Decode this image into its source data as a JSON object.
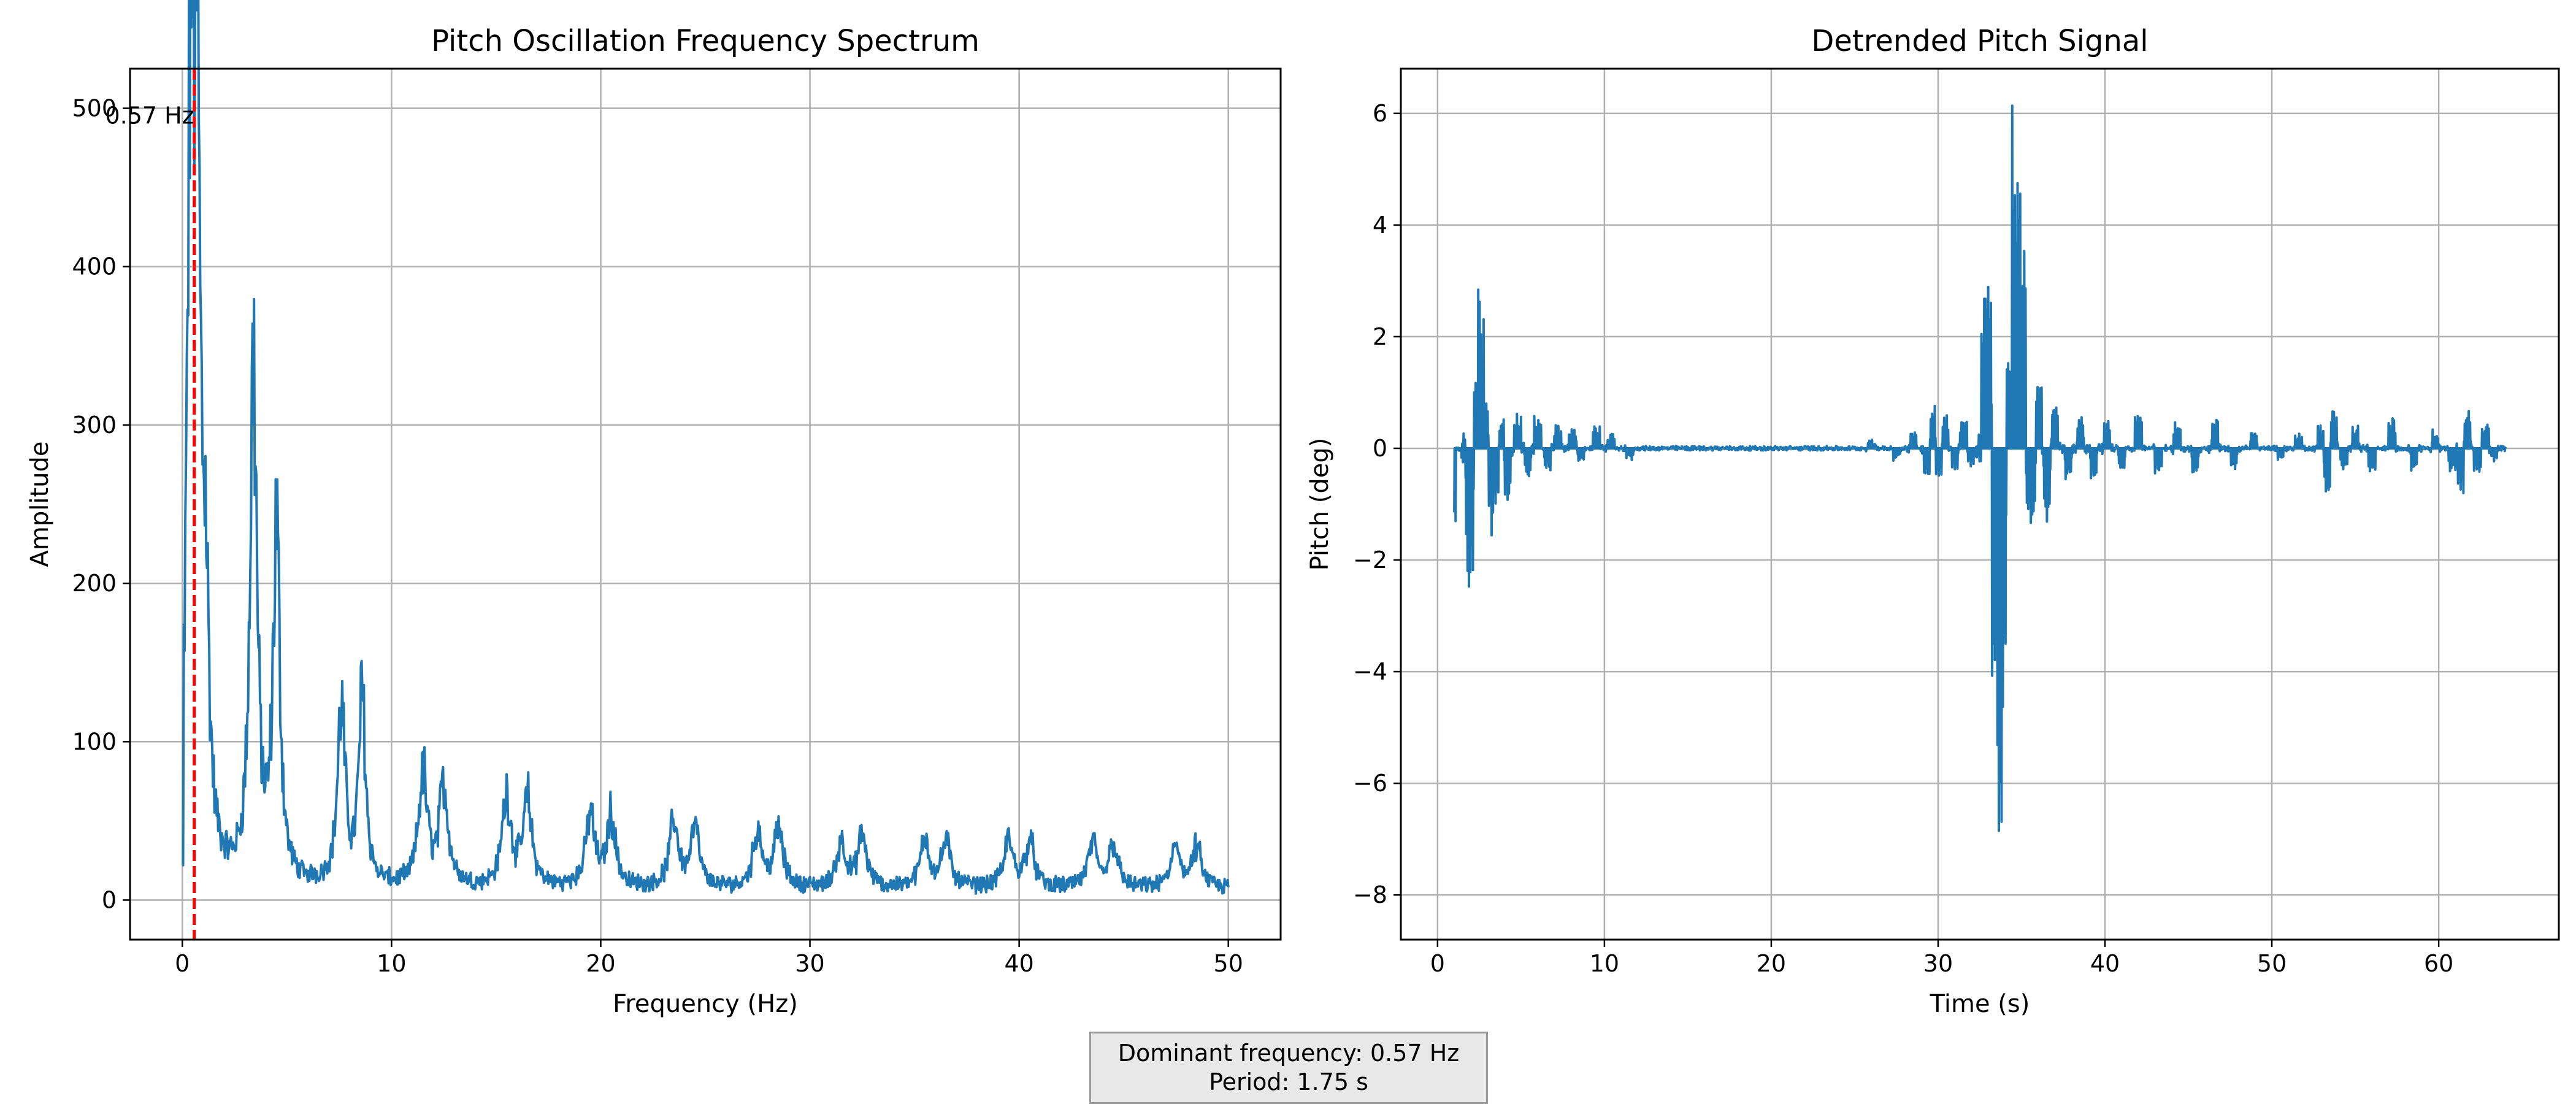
{
  "chart_data": [
    {
      "type": "line",
      "title": "Pitch Oscillation Frequency Spectrum",
      "xlabel": "Frequency (Hz)",
      "ylabel": "Amplitude",
      "xlim": [
        -2.5,
        52.5
      ],
      "ylim": [
        -25,
        525
      ],
      "xticks": [
        0,
        10,
        20,
        30,
        40,
        50
      ],
      "yticks": [
        0,
        100,
        200,
        300,
        400,
        500
      ],
      "grid": true,
      "series": [
        {
          "color": "#1f77b4",
          "peaks": [
            {
              "freq": 0.4,
              "amp": 500,
              "width": 0.18
            },
            {
              "freq": 0.7,
              "amp": 430,
              "width": 0.18
            },
            {
              "freq": 1.1,
              "amp": 160,
              "width": 0.2
            },
            {
              "freq": 3.4,
              "amp": 335,
              "width": 0.2
            },
            {
              "freq": 4.5,
              "amp": 225,
              "width": 0.2
            },
            {
              "freq": 7.6,
              "amp": 113,
              "width": 0.22
            },
            {
              "freq": 8.6,
              "amp": 120,
              "width": 0.2
            },
            {
              "freq": 11.5,
              "amp": 72,
              "width": 0.25
            },
            {
              "freq": 12.5,
              "amp": 65,
              "width": 0.25
            },
            {
              "freq": 15.5,
              "amp": 60,
              "width": 0.25
            },
            {
              "freq": 16.5,
              "amp": 55,
              "width": 0.25
            },
            {
              "freq": 19.5,
              "amp": 47,
              "width": 0.25
            },
            {
              "freq": 20.5,
              "amp": 46,
              "width": 0.25
            },
            {
              "freq": 23.5,
              "amp": 43,
              "width": 0.25
            },
            {
              "freq": 24.5,
              "amp": 38,
              "width": 0.25
            },
            {
              "freq": 27.5,
              "amp": 37,
              "width": 0.25
            },
            {
              "freq": 28.5,
              "amp": 37,
              "width": 0.25
            },
            {
              "freq": 31.5,
              "amp": 30,
              "width": 0.25
            },
            {
              "freq": 32.5,
              "amp": 33,
              "width": 0.25
            },
            {
              "freq": 35.5,
              "amp": 32,
              "width": 0.25
            },
            {
              "freq": 36.5,
              "amp": 29,
              "width": 0.25
            },
            {
              "freq": 39.5,
              "amp": 31,
              "width": 0.25
            },
            {
              "freq": 40.5,
              "amp": 31,
              "width": 0.25
            },
            {
              "freq": 43.5,
              "amp": 28,
              "width": 0.25
            },
            {
              "freq": 44.5,
              "amp": 29,
              "width": 0.25
            },
            {
              "freq": 47.5,
              "amp": 28,
              "width": 0.25
            },
            {
              "freq": 48.5,
              "amp": 26,
              "width": 0.25
            }
          ],
          "x_range": [
            0,
            50
          ]
        }
      ],
      "annotations": [
        {
          "type": "vline",
          "x": 0.57,
          "color": "#ff0000",
          "style": "dashed"
        },
        {
          "type": "text",
          "text": "0.57 Hz",
          "x": 0.57,
          "y": 500
        }
      ]
    },
    {
      "type": "line",
      "title": "Detrended Pitch Signal",
      "xlabel": "Time (s)",
      "ylabel": "Pitch (deg)",
      "xlim": [
        -2.2,
        67.2
      ],
      "ylim": [
        -8.8,
        6.8
      ],
      "xticks": [
        0,
        10,
        20,
        30,
        40,
        50,
        60
      ],
      "yticks": [
        -8,
        -6,
        -4,
        -2,
        0,
        2,
        4,
        6
      ],
      "ytick_labels": [
        "−8",
        "−6",
        "−4",
        "−2",
        "0",
        "2",
        "4",
        "6"
      ],
      "grid": true,
      "series": [
        {
          "color": "#1f77b4",
          "x_range": [
            1,
            64
          ],
          "events": [
            {
              "t": 1.0,
              "v": -1.35
            },
            {
              "t": 1.2,
              "v": 0.0
            },
            {
              "t": 1.9,
              "v": -2.8
            },
            {
              "t": 2.05,
              "v": -2.95
            },
            {
              "t": 2.3,
              "v": 1.2
            },
            {
              "t": 2.5,
              "v": 3.05
            },
            {
              "t": 2.7,
              "v": 2.4
            },
            {
              "t": 2.9,
              "v": 1.0
            },
            {
              "t": 3.2,
              "v": -1.6
            },
            {
              "t": 3.5,
              "v": -1.1
            },
            {
              "t": 3.8,
              "v": 0.5
            },
            {
              "t": 4.2,
              "v": -0.9
            },
            {
              "t": 4.8,
              "v": 0.65
            },
            {
              "t": 5.4,
              "v": -0.5
            },
            {
              "t": 6.0,
              "v": 0.6
            },
            {
              "t": 6.6,
              "v": -0.45
            },
            {
              "t": 7.2,
              "v": 0.4
            },
            {
              "t": 8.1,
              "v": 0.4
            },
            {
              "t": 8.6,
              "v": -0.3
            },
            {
              "t": 9.5,
              "v": 0.35
            },
            {
              "t": 10.4,
              "v": 0.25
            },
            {
              "t": 11.5,
              "v": -0.2
            },
            {
              "t": 26.0,
              "v": 0.15
            },
            {
              "t": 27.5,
              "v": -0.2
            },
            {
              "t": 28.5,
              "v": 0.35
            },
            {
              "t": 29.3,
              "v": -0.5
            },
            {
              "t": 29.7,
              "v": 0.9
            },
            {
              "t": 30.0,
              "v": -0.5
            },
            {
              "t": 30.4,
              "v": 0.6
            },
            {
              "t": 31.0,
              "v": -0.4
            },
            {
              "t": 31.5,
              "v": 0.5
            },
            {
              "t": 32.0,
              "v": -0.3
            },
            {
              "t": 32.8,
              "v": 3.2
            },
            {
              "t": 33.0,
              "v": 3.0
            },
            {
              "t": 33.4,
              "v": -5.8
            },
            {
              "t": 33.7,
              "v": -8.1
            },
            {
              "t": 33.9,
              "v": -5.1
            },
            {
              "t": 34.3,
              "v": 2.0
            },
            {
              "t": 34.5,
              "v": 6.2
            },
            {
              "t": 34.8,
              "v": 5.1
            },
            {
              "t": 35.1,
              "v": 3.6
            },
            {
              "t": 35.4,
              "v": -1.8
            },
            {
              "t": 35.7,
              "v": -1.4
            },
            {
              "t": 36.0,
              "v": 1.2
            },
            {
              "t": 36.5,
              "v": -1.3
            },
            {
              "t": 37.0,
              "v": 0.8
            },
            {
              "t": 37.8,
              "v": -0.6
            },
            {
              "t": 38.5,
              "v": 0.6
            },
            {
              "t": 39.3,
              "v": -0.6
            },
            {
              "t": 40.1,
              "v": 0.5
            },
            {
              "t": 41.0,
              "v": -0.4
            },
            {
              "t": 42.0,
              "v": 0.6
            },
            {
              "t": 43.2,
              "v": -0.5
            },
            {
              "t": 44.3,
              "v": 0.5
            },
            {
              "t": 45.4,
              "v": -0.5
            },
            {
              "t": 46.6,
              "v": 0.5
            },
            {
              "t": 47.7,
              "v": -0.4
            },
            {
              "t": 48.9,
              "v": 0.3
            },
            {
              "t": 50.5,
              "v": -0.2
            },
            {
              "t": 51.6,
              "v": 0.25
            },
            {
              "t": 52.9,
              "v": 0.4
            },
            {
              "t": 53.3,
              "v": -0.8
            },
            {
              "t": 53.7,
              "v": 0.7
            },
            {
              "t": 54.3,
              "v": -0.4
            },
            {
              "t": 55.0,
              "v": 0.5
            },
            {
              "t": 56.0,
              "v": -0.4
            },
            {
              "t": 57.2,
              "v": 0.5
            },
            {
              "t": 58.5,
              "v": -0.4
            },
            {
              "t": 59.8,
              "v": 0.3
            },
            {
              "t": 60.8,
              "v": -0.4
            },
            {
              "t": 61.3,
              "v": -0.8
            },
            {
              "t": 61.7,
              "v": 0.7
            },
            {
              "t": 62.3,
              "v": -0.5
            },
            {
              "t": 62.8,
              "v": 0.5
            },
            {
              "t": 63.3,
              "v": -0.2
            },
            {
              "t": 64.0,
              "v": 0.0
            }
          ]
        }
      ]
    }
  ],
  "info_box": {
    "line1": "Dominant frequency: 0.57 Hz",
    "line2": "Period: 1.75 s"
  }
}
